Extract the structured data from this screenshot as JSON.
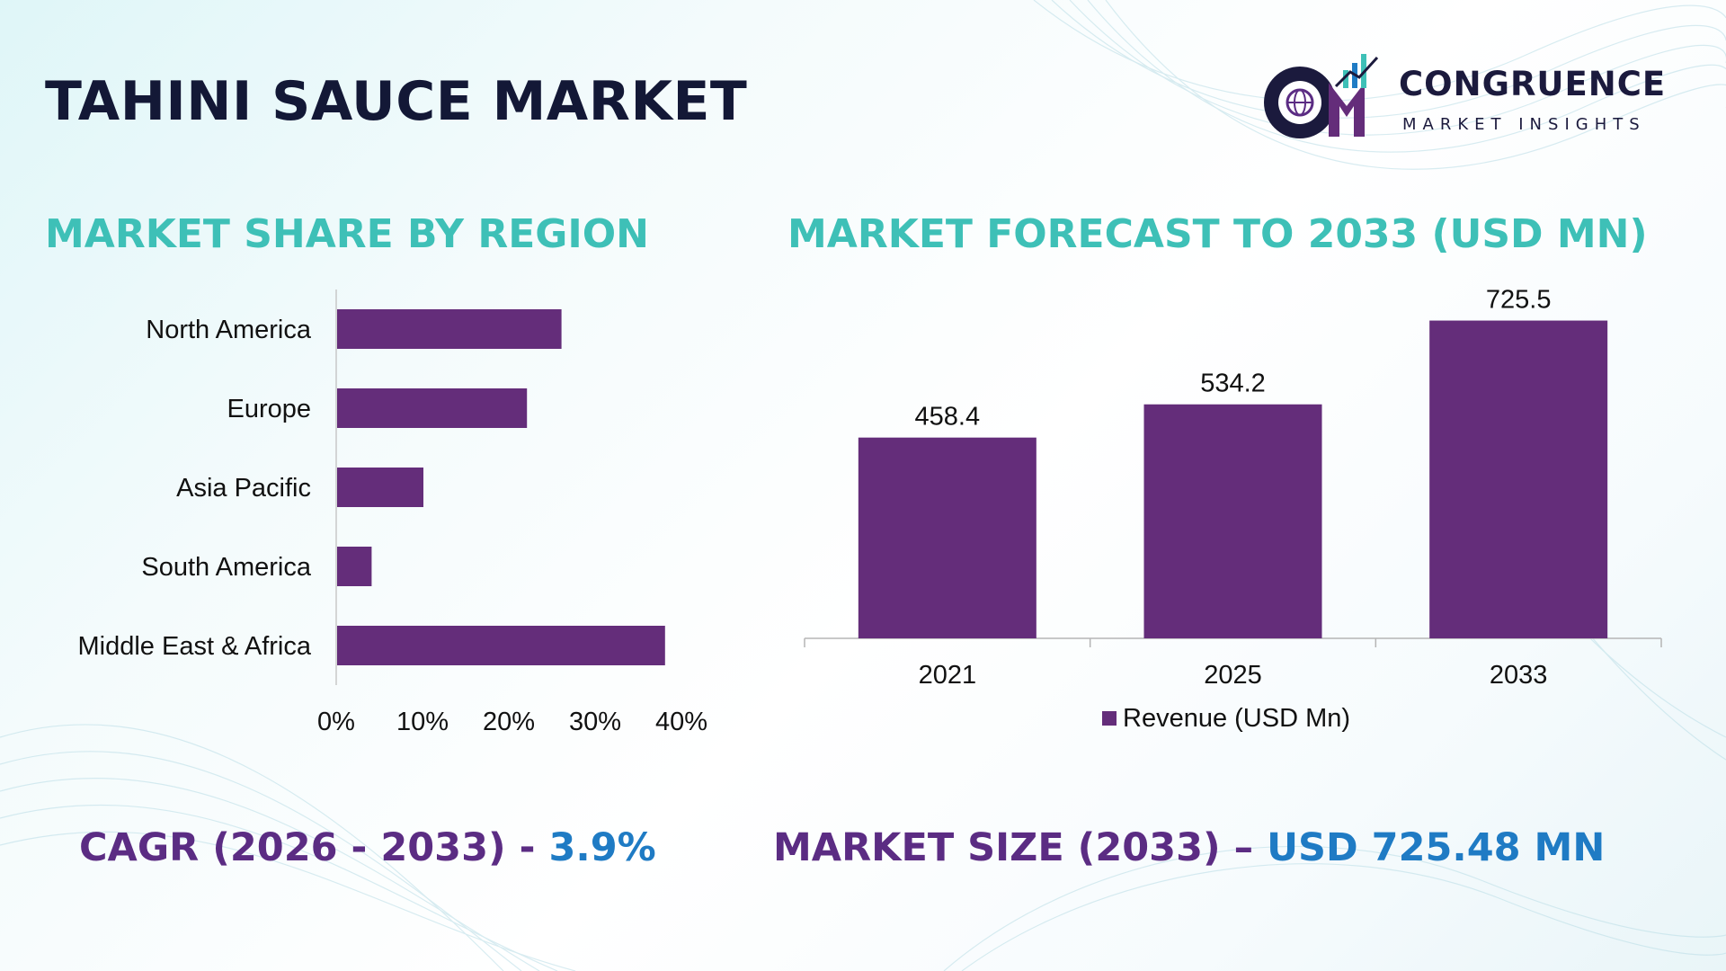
{
  "page": {
    "title": "TAHINI SAUCE MARKET",
    "logo": {
      "name": "CONGRUENCE",
      "tagline": "MARKET INSIGHTS",
      "icon": "cm-globe-chart-logo-icon"
    },
    "colors": {
      "title": "#131836",
      "section_title": "#3ec0b7",
      "bar": "#642d7a",
      "footer_label": "#5b2c83",
      "footer_value": "#1f7bc4"
    },
    "left_section_title": "MARKET SHARE BY REGION",
    "right_section_title": "MARKET FORECAST TO 2033 (USD MN)",
    "footer": {
      "cagr_label": "CAGR (2026 - 2033) - ",
      "cagr_value": "3.9%",
      "size_label": "MARKET SIZE (2033) – ",
      "size_value": "USD 725.48 MN"
    }
  },
  "chart_data": [
    {
      "type": "bar",
      "orientation": "horizontal",
      "title": "MARKET SHARE BY REGION",
      "categories": [
        "North America",
        "Europe",
        "Asia Pacific",
        "South America",
        "Middle East & Africa"
      ],
      "values": [
        26,
        22,
        10,
        4,
        38
      ],
      "unit": "%",
      "xlim": [
        0,
        40
      ],
      "xticks": [
        "0%",
        "10%",
        "20%",
        "30%",
        "40%"
      ],
      "grid": false,
      "legend": "none"
    },
    {
      "type": "bar",
      "orientation": "vertical",
      "title": "MARKET FORECAST TO 2033 (USD MN)",
      "categories": [
        "2021",
        "2025",
        "2033"
      ],
      "series": [
        {
          "name": "Revenue (USD Mn)",
          "values": [
            458.4,
            534.2,
            725.5
          ]
        }
      ],
      "data_labels": [
        "458.4",
        "534.2",
        "725.5"
      ],
      "ylim": [
        0,
        780
      ],
      "grid": false,
      "legend": "bottom"
    }
  ]
}
